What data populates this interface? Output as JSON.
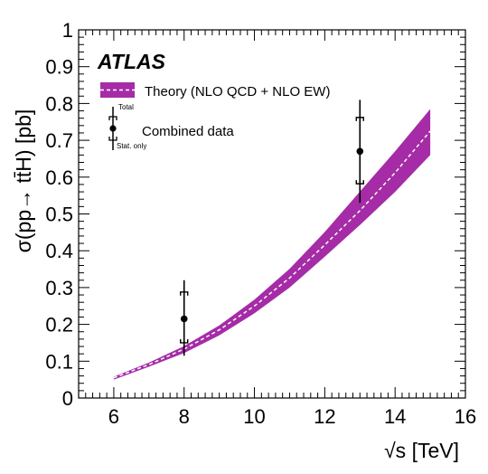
{
  "chart_data": {
    "type": "line",
    "experiment_label": "ATLAS",
    "xlabel": "√s [TeV]",
    "ylabel": "σ(pp→ tt̄H) [pb]",
    "xlim": [
      5,
      16
    ],
    "ylim": [
      0,
      1
    ],
    "x_ticks": [
      "6",
      "8",
      "10",
      "12",
      "14",
      "16"
    ],
    "y_ticks": [
      "0",
      "0.1",
      "0.2",
      "0.3",
      "0.4",
      "0.5",
      "0.6",
      "0.7",
      "0.8",
      "0.9",
      "1"
    ],
    "grid": false,
    "legend_placement": "top-left",
    "legend": {
      "theory": "Theory (NLO QCD + NLO EW)",
      "data": "Combined data",
      "total": "Total",
      "stat_only": "Stat. only"
    },
    "series": [
      {
        "name": "Theory (NLO QCD + NLO EW)",
        "kind": "band",
        "color": "#a52ca6",
        "center_color": "#ffffff",
        "x": [
          6,
          7,
          8,
          9,
          10,
          11,
          12,
          13,
          14,
          15
        ],
        "center": [
          0.055,
          0.091,
          0.133,
          0.185,
          0.25,
          0.326,
          0.416,
          0.509,
          0.612,
          0.725
        ],
        "upper": [
          0.058,
          0.096,
          0.141,
          0.197,
          0.267,
          0.351,
          0.451,
          0.561,
          0.67,
          0.785
        ],
        "lower": [
          0.05,
          0.085,
          0.122,
          0.17,
          0.23,
          0.3,
          0.384,
          0.47,
          0.56,
          0.66
        ]
      },
      {
        "name": "Combined data",
        "kind": "points",
        "color": "#000000",
        "points": [
          {
            "x": 8,
            "y": 0.215,
            "total_low": 0.115,
            "total_high": 0.32,
            "stat_low": 0.15,
            "stat_high": 0.288
          },
          {
            "x": 13,
            "y": 0.67,
            "total_low": 0.53,
            "total_high": 0.81,
            "stat_low": 0.582,
            "stat_high": 0.762
          }
        ]
      }
    ]
  }
}
